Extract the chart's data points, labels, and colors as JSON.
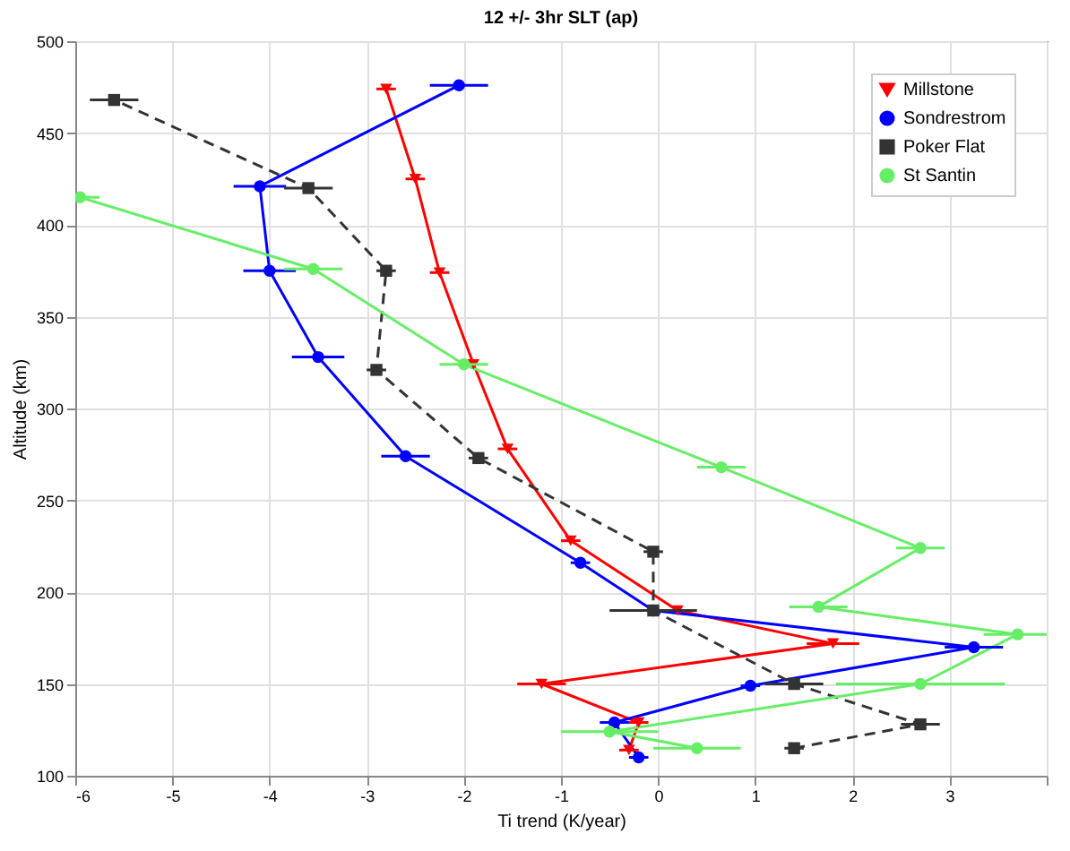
{
  "chart_data": {
    "type": "line",
    "title": "12 +/- 3hr SLT (ap)",
    "xlabel": "Ti trend (K/year)",
    "ylabel": "Altitude (km)",
    "xlim": [
      -6,
      4
    ],
    "xticks": [
      -6,
      -5,
      -4,
      -3,
      -2,
      -1,
      0,
      1,
      2,
      3,
      {
        "value": 4,
        "label": null
      }
    ],
    "ylim": [
      100,
      500
    ],
    "yticks": [
      100,
      150,
      200,
      250,
      300,
      350,
      400,
      450,
      500
    ],
    "grid": true,
    "legend": "top right",
    "series": [
      {
        "name": "Millstone",
        "color": "#ff0000",
        "marker": "triangle",
        "line_style": "solid",
        "x": [
          -0.3,
          -0.2,
          -1.2,
          1.8,
          0.2,
          -0.9,
          -1.55,
          -1.9,
          -2.25,
          -2.5,
          -2.8
        ],
        "values": [
          114,
          129,
          150,
          172,
          190,
          228,
          278,
          324,
          374,
          425,
          474
        ],
        "xerrors": [
          0.1,
          0.1,
          0.25,
          0.27,
          0.15,
          0.1,
          0.1,
          null,
          0.1,
          0.1,
          0.1
        ]
      },
      {
        "name": "Sondrestrom",
        "color": "#0000ff",
        "marker": "circle",
        "line_style": "solid",
        "x": [
          -0.2,
          -0.45,
          0.95,
          3.25,
          -0.05,
          -0.8,
          -2.6,
          -3.5,
          -4.0,
          -4.1,
          -2.05
        ],
        "values": [
          110,
          129,
          149,
          170,
          190,
          216,
          274,
          328,
          375,
          421,
          476
        ],
        "xerrors": [
          0.1,
          0.15,
          0.1,
          0.3,
          0.1,
          0.1,
          0.25,
          0.27,
          0.27,
          0.27,
          0.3
        ]
      },
      {
        "name": "Poker Flat",
        "color": "#333333",
        "marker": "square",
        "line_style": "dashed",
        "x": [
          1.4,
          2.7,
          1.4,
          -0.05,
          -0.05,
          -1.85,
          -2.9,
          -2.8,
          -3.6,
          -5.6
        ],
        "values": [
          115,
          128,
          150,
          190,
          222,
          273,
          321,
          375,
          420,
          468
        ],
        "xerrors": [
          0.1,
          0.2,
          0.3,
          0.45,
          0.1,
          0.1,
          0.1,
          0.1,
          0.25,
          0.25
        ]
      },
      {
        "name": "St Santin",
        "color": "#66ee66",
        "marker": "circle",
        "line_style": "solid",
        "x": [
          0.4,
          -0.5,
          2.7,
          3.7,
          1.65,
          2.7,
          0.65,
          -2.0,
          -3.55,
          -5.95
        ],
        "values": [
          115,
          124,
          150,
          177,
          192,
          224,
          268,
          324,
          376,
          415
        ],
        "xerrors": [
          0.45,
          0.5,
          0.87,
          0.35,
          0.3,
          0.25,
          0.25,
          0.25,
          0.3,
          0.2
        ]
      }
    ]
  }
}
